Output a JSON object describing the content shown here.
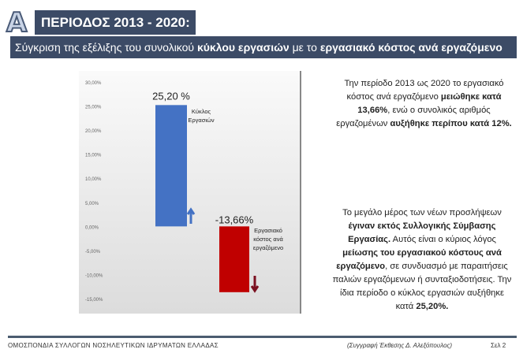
{
  "header": {
    "letter": "A",
    "title": "ΠΕΡΙΟΔΟΣ 2013 - 2020:",
    "subtitle": [
      {
        "t": "Σύγκριση της εξέλιξης του συνολικού ",
        "b": false
      },
      {
        "t": "κύκλου εργασιών",
        "b": true
      },
      {
        "t": " με το ",
        "b": false
      },
      {
        "t": "εργασιακό κόστος ανά εργαζόμενο",
        "b": true
      }
    ]
  },
  "chart_data": {
    "type": "bar",
    "categories": [
      "Κύκλος Εργασιών",
      "Εργασιακό κόστος ανά εργαζόμενο"
    ],
    "values": [
      25.2,
      -13.66
    ],
    "data_labels": [
      "25,20 %",
      "-13,66%"
    ],
    "ylim": [
      -15,
      30
    ],
    "yticks": [
      "30,00%",
      "25,00%",
      "20,00%",
      "15,00%",
      "10,00%",
      "5,00%",
      "0,00%",
      "-5,00%",
      "-10,00%",
      "-15,00%"
    ],
    "colors": [
      "#4472c4",
      "#c00000"
    ],
    "title": "",
    "xlabel": "",
    "ylabel": ""
  },
  "text": {
    "p1": [
      {
        "t": "Την περίοδο 2013 ως 2020 το εργασιακό κόστος ανά εργαζόμενο ",
        "b": false
      },
      {
        "t": "μειώθηκε κατά 13,66%",
        "b": true
      },
      {
        "t": ", ενώ ο συνολικός αριθμός εργαζομένων ",
        "b": false
      },
      {
        "t": "αυξήθηκε περίπου κατά 12%.",
        "b": true
      }
    ],
    "p2": [
      {
        "t": "Το μεγάλο μέρος των νέων προσλήψεων ",
        "b": false
      },
      {
        "t": "έγιναν εκτός Συλλογικής Σύμβασης Εργασίας.",
        "b": true
      },
      {
        "t": " Αυτός είναι ο κύριος λόγος ",
        "b": false
      },
      {
        "t": "μείωσης του εργασιακού κόστους ανά εργαζόμενο",
        "b": true
      },
      {
        "t": ", σε συνδυασμό με παραιτήσεις παλιών εργαζόμενων ή συνταξιοδοτήσεις. Την ίδια περίοδο ο κύκλος εργασιών αυξήθηκε κατά ",
        "b": false
      },
      {
        "t": "25,20%.",
        "b": true
      }
    ]
  },
  "footer": {
    "org": "ΟΜΟΣΠΟΝΔΙΑ ΣΥΛΛΟΓΩΝ ΝΟΣΗΛΕΥΤΙΚΩΝ ΙΔΡΥΜΑΤΩΝ ΕΛΛΑΔΑΣ",
    "author": "(Συγγραφή Έκθεσης Δ. Αλεξόπουλος)",
    "page": "Σελ 2"
  }
}
